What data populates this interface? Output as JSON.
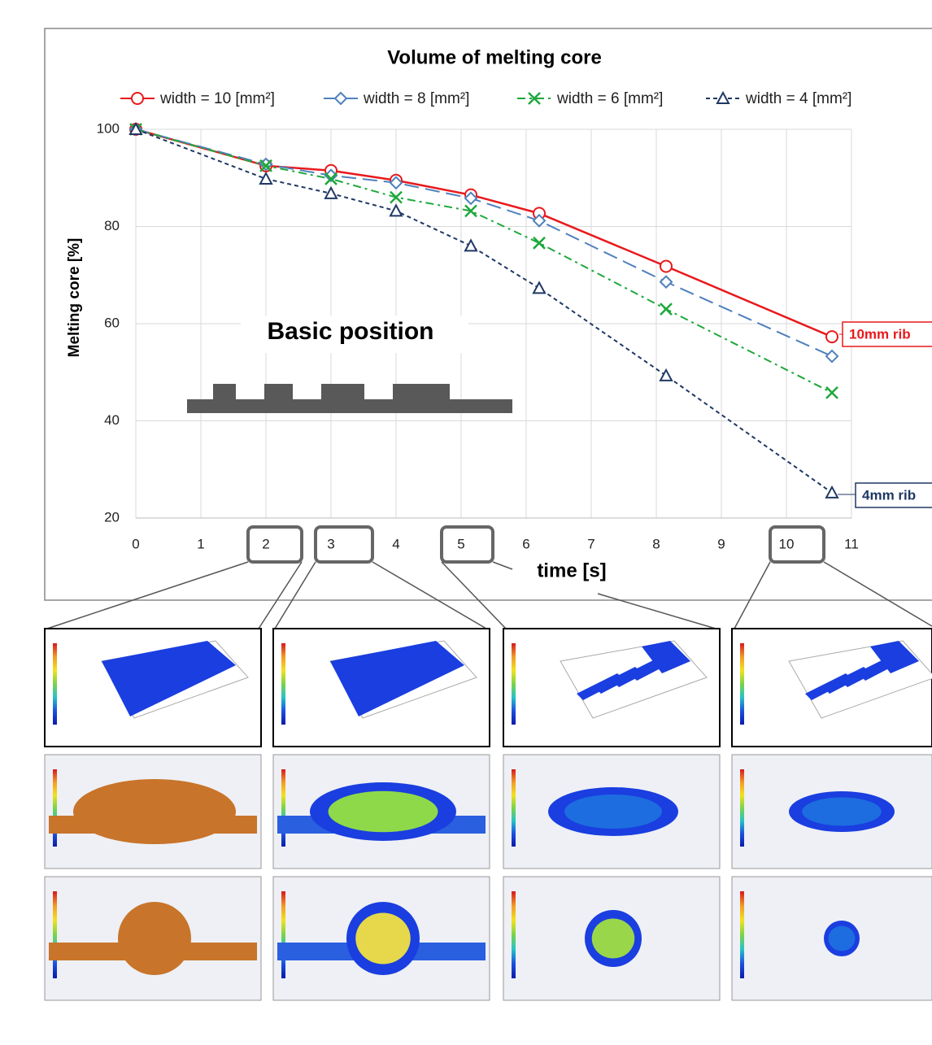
{
  "chart_data": {
    "type": "line",
    "title": "Volume of melting core",
    "xlabel": "time [s]",
    "ylabel": "Melting core [%]",
    "x": [
      0,
      2,
      3,
      4,
      5.15,
      6.2,
      8.15,
      10.7
    ],
    "series": [
      {
        "name": "width = 10 [mm²]",
        "color": "#e8191c",
        "marker": "circle",
        "dash": "solid",
        "values": [
          100,
          92.5,
          91.5,
          89.5,
          86.5,
          82.7,
          71.8,
          57.3
        ]
      },
      {
        "name": "width = 8 [mm²]",
        "color": "#4f81bd",
        "marker": "diamond",
        "dash": "long",
        "values": [
          100,
          92.8,
          90.5,
          89,
          85.8,
          81.2,
          68.6,
          53.3
        ]
      },
      {
        "name": "width = 6 [mm²]",
        "color": "#1ea83c",
        "marker": "x",
        "dash": "dashdot",
        "values": [
          100,
          92.5,
          89.8,
          86,
          83.2,
          76.6,
          63,
          45.8
        ]
      },
      {
        "name": "width = 4 [mm²]",
        "color": "#1f3864",
        "marker": "triangle",
        "dash": "short",
        "values": [
          100,
          89.8,
          86.8,
          83.2,
          76,
          67.3,
          49.3,
          25.2
        ]
      }
    ],
    "xlim": [
      0,
      11
    ],
    "xticks": [
      0,
      1,
      2,
      3,
      4,
      5,
      6,
      7,
      8,
      9,
      10,
      11
    ],
    "ylim": [
      20,
      100
    ],
    "yticks": [
      20,
      40,
      60,
      80,
      100
    ],
    "grid": true,
    "annotations": [
      "Basic position",
      "10mm rib",
      "4mm rib"
    ]
  }
}
